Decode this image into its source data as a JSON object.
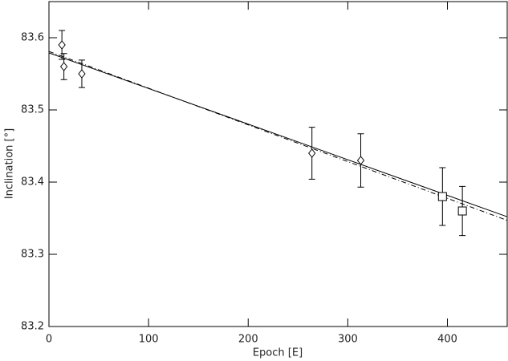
{
  "chart_data": {
    "type": "scatter",
    "xlabel": "Epoch [E]",
    "ylabel": "Inclination [°]",
    "xlim": [
      0,
      460
    ],
    "ylim": [
      83.2,
      83.65
    ],
    "xticks": [
      0,
      100,
      200,
      300,
      400
    ],
    "yticks": [
      83.2,
      83.3,
      83.4,
      83.5,
      83.6
    ],
    "color": "#000000",
    "series": [
      {
        "marker": "diamond",
        "x": [
          13,
          15,
          33,
          264,
          313
        ],
        "values": [
          83.59,
          83.56,
          83.55,
          83.44,
          83.43
        ],
        "errors": [
          0.02,
          0.018,
          0.019,
          0.036,
          0.037
        ]
      },
      {
        "marker": "square",
        "x": [
          395,
          415
        ],
        "values": [
          83.38,
          83.36
        ],
        "errors": [
          0.04,
          0.034
        ]
      }
    ],
    "lines": [
      {
        "style": "solid",
        "x": [
          0,
          460
        ],
        "values": [
          83.579,
          83.352
        ]
      },
      {
        "style": "dashdot",
        "x": [
          0,
          460
        ],
        "values": [
          83.581,
          83.347
        ]
      }
    ]
  }
}
